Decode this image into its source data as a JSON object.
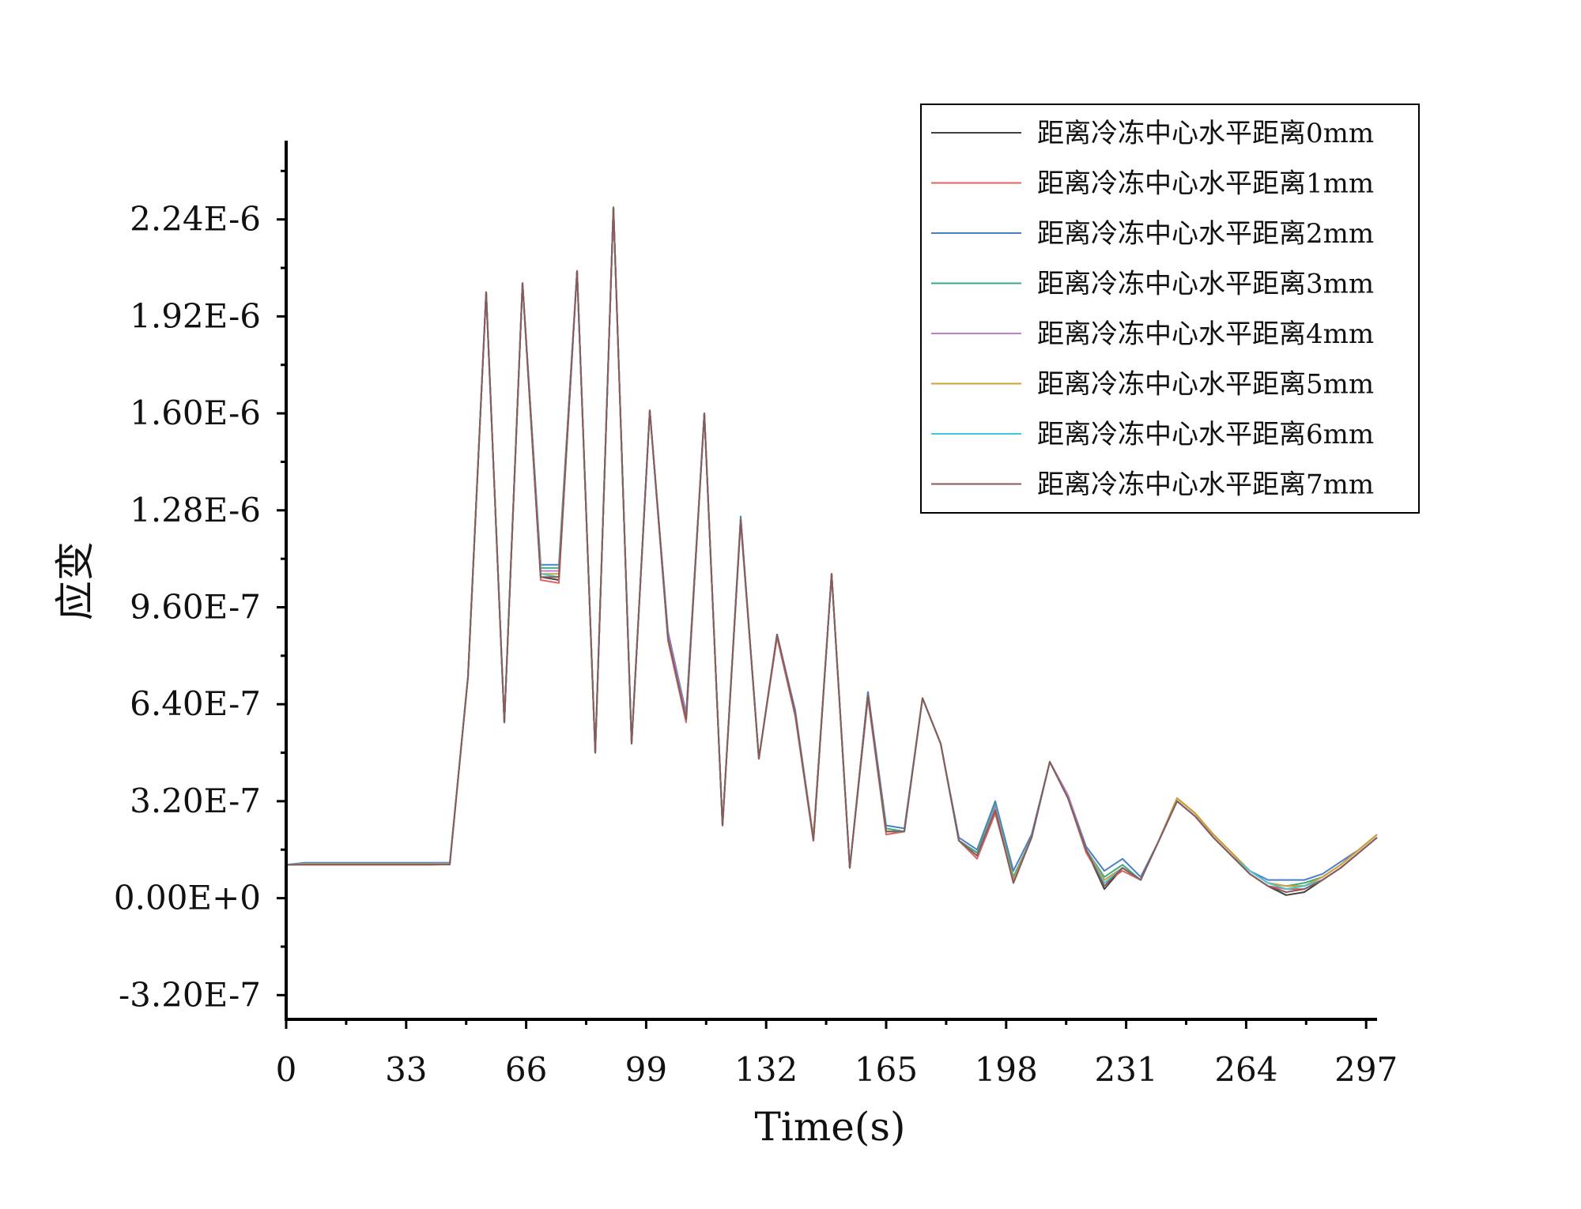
{
  "chart_data": {
    "type": "line",
    "title": "",
    "xlabel": "Time(s)",
    "ylabel": "应变",
    "xlim": [
      0,
      300
    ],
    "ylim": [
      -4e-07,
      2.5e-06
    ],
    "x_ticks": [
      0,
      33,
      66,
      99,
      132,
      165,
      198,
      231,
      264,
      297
    ],
    "x_tick_labels": [
      "0",
      "33",
      "66",
      "99",
      "132",
      "165",
      "198",
      "231",
      "264",
      "297"
    ],
    "y_ticks": [
      -3.2e-07,
      0,
      3.2e-07,
      6.4e-07,
      9.6e-07,
      1.28e-06,
      1.6e-06,
      1.92e-06,
      2.24e-06
    ],
    "y_tick_labels": [
      "-3.20E-7",
      "0.00E+0",
      "3.20E-7",
      "6.40E-7",
      "9.60E-7",
      "1.28E-6",
      "1.60E-6",
      "1.92E-6",
      "2.24E-6"
    ],
    "grid": false,
    "legend_position": "top-right",
    "x": [
      0,
      5,
      10,
      15,
      20,
      25,
      30,
      35,
      40,
      45,
      50,
      55,
      60,
      65,
      70,
      75,
      80,
      85,
      90,
      95,
      100,
      105,
      110,
      115,
      120,
      125,
      130,
      135,
      140,
      145,
      150,
      155,
      160,
      165,
      170,
      175,
      180,
      185,
      190,
      195,
      200,
      205,
      210,
      215,
      220,
      225,
      230,
      235,
      240,
      245,
      250,
      255,
      260,
      265,
      270,
      275,
      280,
      285,
      290,
      295,
      300
    ],
    "series": [
      {
        "name": "距离冷冻中心水平距离0mm",
        "color": "#404040",
        "values": [
          1.1e-07,
          1.12e-07,
          1.12e-07,
          1.12e-07,
          1.13e-07,
          1.13e-07,
          1.13e-07,
          1.13e-07,
          1.13e-07,
          1.14e-07,
          7.3e-07,
          2e-06,
          5.8e-07,
          2.03e-06,
          1.06e-06,
          1.05e-06,
          2.07e-06,
          4.8e-07,
          2.28e-06,
          5.1e-07,
          1.61e-06,
          8.6e-07,
          5.9e-07,
          1.6e-06,
          2.4e-07,
          1.25e-06,
          4.6e-07,
          8.7e-07,
          6.1e-07,
          1.9e-07,
          1.07e-06,
          1e-07,
          6.8e-07,
          2.2e-07,
          2.2e-07,
          6.6e-07,
          5.1e-07,
          1.9e-07,
          1.5e-07,
          3e-07,
          5e-08,
          2e-07,
          4.5e-07,
          3.3e-07,
          1.6e-07,
          3e-08,
          1e-07,
          6e-08,
          1.9e-07,
          3.2e-07,
          2.7e-07,
          2e-07,
          1.4e-07,
          8e-08,
          4e-08,
          1e-08,
          2e-08,
          6e-08,
          1e-07,
          1.5e-07,
          2e-07
        ]
      },
      {
        "name": "距离冷冻中心水平距离1mm",
        "color": "#e06060",
        "values": [
          1.1e-07,
          1.1e-07,
          1.1e-07,
          1.1e-07,
          1.1e-07,
          1.1e-07,
          1.1e-07,
          1.1e-07,
          1.1e-07,
          1.12e-07,
          7.3e-07,
          2e-06,
          5.8e-07,
          2.03e-06,
          1.05e-06,
          1.04e-06,
          2.07e-06,
          4.8e-07,
          2.28e-06,
          5.1e-07,
          1.61e-06,
          8.5e-07,
          5.8e-07,
          1.6e-06,
          2.4e-07,
          1.24e-06,
          4.6e-07,
          8.6e-07,
          6e-07,
          1.9e-07,
          1.07e-06,
          1e-07,
          6.6e-07,
          2.1e-07,
          2.2e-07,
          6.6e-07,
          5.1e-07,
          1.9e-07,
          1.3e-07,
          2.8e-07,
          6e-08,
          2e-07,
          4.5e-07,
          3.3e-07,
          1.5e-07,
          5e-08,
          9e-08,
          6e-08,
          1.9e-07,
          3.2e-07,
          2.7e-07,
          2e-07,
          1.4e-07,
          8e-08,
          4e-08,
          3e-08,
          3e-08,
          6e-08,
          1e-07,
          1.5e-07,
          2e-07
        ]
      },
      {
        "name": "距离冷冻中心水平距离2mm",
        "color": "#4a7fc8",
        "values": [
          1.1e-07,
          1.17e-07,
          1.17e-07,
          1.17e-07,
          1.17e-07,
          1.17e-07,
          1.17e-07,
          1.17e-07,
          1.17e-07,
          1.17e-07,
          7.3e-07,
          2e-06,
          5.8e-07,
          2.03e-06,
          1.1e-06,
          1.1e-06,
          2.07e-06,
          4.8e-07,
          2.28e-06,
          5.1e-07,
          1.61e-06,
          8.8e-07,
          6.1e-07,
          1.6e-06,
          2.4e-07,
          1.26e-06,
          4.6e-07,
          8.7e-07,
          6.2e-07,
          2e-07,
          1.07e-06,
          1e-07,
          6.8e-07,
          2.4e-07,
          2.3e-07,
          6.6e-07,
          5.1e-07,
          2e-07,
          1.6e-07,
          3.2e-07,
          9e-08,
          2.1e-07,
          4.5e-07,
          3.4e-07,
          1.7e-07,
          9e-08,
          1.3e-07,
          7e-08,
          1.9e-07,
          3.3e-07,
          2.8e-07,
          2.1e-07,
          1.5e-07,
          9e-08,
          6e-08,
          6e-08,
          6e-08,
          8e-08,
          1.2e-07,
          1.6e-07,
          2.1e-07
        ]
      },
      {
        "name": "距离冷冻中心水平距离3mm",
        "color": "#3aaa80",
        "values": [
          1.1e-07,
          1.15e-07,
          1.15e-07,
          1.15e-07,
          1.15e-07,
          1.15e-07,
          1.15e-07,
          1.15e-07,
          1.15e-07,
          1.15e-07,
          7.3e-07,
          2e-06,
          5.8e-07,
          2.03e-06,
          1.09e-06,
          1.09e-06,
          2.07e-06,
          4.8e-07,
          2.28e-06,
          5.1e-07,
          1.61e-06,
          8.7e-07,
          6e-07,
          1.6e-06,
          2.4e-07,
          1.25e-06,
          4.6e-07,
          8.7e-07,
          6.1e-07,
          2e-07,
          1.07e-06,
          1e-07,
          6.7e-07,
          2.3e-07,
          2.2e-07,
          6.6e-07,
          5.1e-07,
          1.9e-07,
          1.5e-07,
          3.1e-07,
          7e-08,
          2e-07,
          4.5e-07,
          3.4e-07,
          1.6e-07,
          7e-08,
          1.1e-07,
          6e-08,
          1.9e-07,
          3.3e-07,
          2.8e-07,
          2.1e-07,
          1.5e-07,
          9e-08,
          5e-08,
          4e-08,
          5e-08,
          7e-08,
          1.1e-07,
          1.6e-07,
          2.1e-07
        ]
      },
      {
        "name": "距离冷冻中心水平距离4mm",
        "color": "#c47cd0",
        "values": [
          1.1e-07,
          1.14e-07,
          1.14e-07,
          1.14e-07,
          1.14e-07,
          1.14e-07,
          1.14e-07,
          1.14e-07,
          1.14e-07,
          1.14e-07,
          7.3e-07,
          2e-06,
          5.8e-07,
          2.03e-06,
          1.08e-06,
          1.08e-06,
          2.07e-06,
          4.8e-07,
          2.28e-06,
          5.1e-07,
          1.61e-06,
          8.7e-07,
          6e-07,
          1.6e-06,
          2.4e-07,
          1.25e-06,
          4.6e-07,
          8.7e-07,
          6.1e-07,
          2e-07,
          1.07e-06,
          1e-07,
          6.7e-07,
          2.2e-07,
          2.2e-07,
          6.6e-07,
          5.1e-07,
          1.9e-07,
          1.4e-07,
          3e-07,
          6e-08,
          2e-07,
          4.5e-07,
          3.4e-07,
          1.6e-07,
          6e-08,
          1e-07,
          6e-08,
          1.9e-07,
          3.3e-07,
          2.8e-07,
          2.1e-07,
          1.5e-07,
          9e-08,
          5e-08,
          4e-08,
          4e-08,
          7e-08,
          1.1e-07,
          1.6e-07,
          2.1e-07
        ]
      },
      {
        "name": "距离冷冻中心水平距离5mm",
        "color": "#d0a030",
        "values": [
          1.1e-07,
          1.13e-07,
          1.13e-07,
          1.13e-07,
          1.13e-07,
          1.13e-07,
          1.13e-07,
          1.13e-07,
          1.13e-07,
          1.13e-07,
          7.3e-07,
          2e-06,
          5.8e-07,
          2.03e-06,
          1.07e-06,
          1.07e-06,
          2.07e-06,
          4.8e-07,
          2.28e-06,
          5.1e-07,
          1.61e-06,
          8.6e-07,
          5.9e-07,
          1.6e-06,
          2.4e-07,
          1.25e-06,
          4.6e-07,
          8.7e-07,
          6.1e-07,
          2e-07,
          1.07e-06,
          1e-07,
          6.7e-07,
          2.2e-07,
          2.2e-07,
          6.6e-07,
          5.1e-07,
          1.9e-07,
          1.4e-07,
          2.9e-07,
          6e-08,
          2e-07,
          4.5e-07,
          3.3e-07,
          1.6e-07,
          6e-08,
          1e-07,
          6e-08,
          1.9e-07,
          3.3e-07,
          2.8e-07,
          2.1e-07,
          1.5e-07,
          9e-08,
          5e-08,
          4e-08,
          4e-08,
          7e-08,
          1.1e-07,
          1.6e-07,
          2.1e-07
        ]
      },
      {
        "name": "距离冷冻中心水平距离6mm",
        "color": "#40c8d8",
        "values": [
          1.1e-07,
          1.12e-07,
          1.12e-07,
          1.12e-07,
          1.12e-07,
          1.12e-07,
          1.12e-07,
          1.12e-07,
          1.12e-07,
          1.12e-07,
          7.3e-07,
          2e-06,
          5.8e-07,
          2.03e-06,
          1.07e-06,
          1.06e-06,
          2.07e-06,
          4.8e-07,
          2.28e-06,
          5.1e-07,
          1.61e-06,
          8.6e-07,
          5.9e-07,
          1.6e-06,
          2.4e-07,
          1.25e-06,
          4.6e-07,
          8.7e-07,
          6.1e-07,
          1.9e-07,
          1.07e-06,
          1e-07,
          6.7e-07,
          2.2e-07,
          2.2e-07,
          6.6e-07,
          5.1e-07,
          1.9e-07,
          1.4e-07,
          2.9e-07,
          5e-08,
          2e-07,
          4.5e-07,
          3.3e-07,
          1.6e-07,
          5e-08,
          1e-07,
          6e-08,
          1.9e-07,
          3.2e-07,
          2.7e-07,
          2e-07,
          1.4e-07,
          9e-08,
          5e-08,
          3e-08,
          4e-08,
          6e-08,
          1e-07,
          1.5e-07,
          2e-07
        ]
      },
      {
        "name": "距离冷冻中心水平距离7mm",
        "color": "#8a5a5a",
        "values": [
          1.1e-07,
          1.11e-07,
          1.11e-07,
          1.11e-07,
          1.11e-07,
          1.11e-07,
          1.11e-07,
          1.11e-07,
          1.11e-07,
          1.11e-07,
          7.3e-07,
          2e-06,
          5.8e-07,
          2.03e-06,
          1.06e-06,
          1.06e-06,
          2.07e-06,
          4.8e-07,
          2.28e-06,
          5.1e-07,
          1.61e-06,
          8.6e-07,
          5.9e-07,
          1.6e-06,
          2.4e-07,
          1.25e-06,
          4.6e-07,
          8.7e-07,
          6.1e-07,
          1.9e-07,
          1.07e-06,
          1e-07,
          6.7e-07,
          2.2e-07,
          2.2e-07,
          6.6e-07,
          5.1e-07,
          1.9e-07,
          1.4e-07,
          2.9e-07,
          5e-08,
          2e-07,
          4.5e-07,
          3.3e-07,
          1.6e-07,
          4e-08,
          1e-07,
          6e-08,
          1.9e-07,
          3.2e-07,
          2.7e-07,
          2e-07,
          1.4e-07,
          8e-08,
          4e-08,
          2e-08,
          3e-08,
          6e-08,
          1e-07,
          1.5e-07,
          2e-07
        ]
      }
    ]
  }
}
